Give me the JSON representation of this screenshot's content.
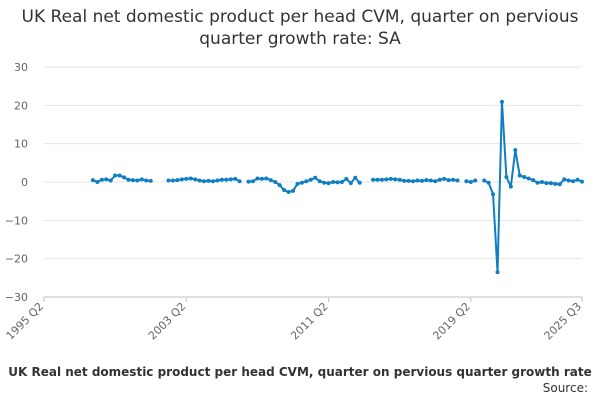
{
  "chart_data": {
    "type": "line",
    "title": "UK Real net domestic product per head CVM, quarter on pervious quarter growth rate: SA",
    "xlabel": "",
    "ylabel": "",
    "ylim": [
      -30,
      30
    ],
    "yticks": [
      "30",
      "20",
      "10",
      "0",
      "−10",
      "−20",
      "−30"
    ],
    "xticks": [
      "1995 Q2",
      "2003 Q2",
      "2011 Q2",
      "2019 Q2",
      "2025 Q3"
    ],
    "grid": "horizontal",
    "legend_position": "bottom",
    "series": [
      {
        "name": "UK Real net domestic product per head CVM, quarter on pervious quarter growth rate",
        "color": "#0f7ec2",
        "segments": [
          {
            "x": [
              "1998 Q1",
              "1998 Q2",
              "1998 Q3",
              "1998 Q4",
              "1999 Q1",
              "1999 Q2",
              "1999 Q3",
              "1999 Q4",
              "2000 Q1",
              "2000 Q2",
              "2000 Q3",
              "2000 Q4",
              "2001 Q1",
              "2001 Q2",
              "2001 Q3",
              "2001 Q4"
            ],
            "y": [
              0.5,
              0.0,
              0.6,
              0.7,
              0.4,
              1.7,
              1.7,
              1.2,
              0.6,
              0.5,
              0.4,
              0.7,
              0.4,
              0.3,
              null,
              null
            ]
          },
          {
            "x": [
              "2002 Q2",
              "2002 Q3",
              "2002 Q4",
              "2003 Q1",
              "2003 Q2",
              "2003 Q3",
              "2003 Q4",
              "2004 Q1",
              "2004 Q2",
              "2004 Q3",
              "2004 Q4",
              "2005 Q1",
              "2005 Q2",
              "2005 Q3",
              "2005 Q4",
              "2006 Q1",
              "2006 Q2",
              "2006 Q3"
            ],
            "y": [
              0.4,
              0.4,
              0.5,
              0.7,
              0.8,
              0.9,
              0.7,
              0.4,
              0.2,
              0.3,
              0.2,
              0.4,
              0.6,
              0.6,
              0.7,
              0.8,
              0.2,
              null
            ]
          },
          {
            "x": [
              "2006 Q4",
              "2007 Q1",
              "2007 Q2",
              "2007 Q3",
              "2007 Q4",
              "2008 Q1",
              "2008 Q2",
              "2008 Q3",
              "2008 Q4",
              "2009 Q1",
              "2009 Q2",
              "2009 Q3",
              "2009 Q4",
              "2010 Q1",
              "2010 Q2",
              "2010 Q3",
              "2010 Q4",
              "2011 Q1",
              "2011 Q2",
              "2011 Q3",
              "2011 Q4",
              "2012 Q1",
              "2012 Q2",
              "2012 Q3",
              "2012 Q4",
              "2013 Q1",
              "2013 Q2"
            ],
            "y": [
              0.1,
              0.2,
              0.9,
              0.8,
              0.9,
              0.5,
              0.0,
              -0.8,
              -2.1,
              -2.6,
              -2.3,
              -0.5,
              -0.2,
              0.2,
              0.6,
              1.1,
              0.2,
              -0.2,
              -0.3,
              0.0,
              -0.1,
              0.0,
              0.8,
              -0.3,
              1.1,
              -0.2,
              null
            ]
          },
          {
            "x": [
              "2013 Q4",
              "2014 Q1",
              "2014 Q2",
              "2014 Q3",
              "2014 Q4",
              "2015 Q1",
              "2015 Q2",
              "2015 Q3",
              "2015 Q4",
              "2016 Q1",
              "2016 Q2",
              "2016 Q3",
              "2016 Q4",
              "2017 Q1",
              "2017 Q2",
              "2017 Q3",
              "2017 Q4",
              "2018 Q1",
              "2018 Q2",
              "2018 Q3"
            ],
            "y": [
              0.6,
              0.6,
              0.6,
              0.7,
              0.8,
              0.7,
              0.6,
              0.3,
              0.3,
              0.2,
              0.4,
              0.3,
              0.5,
              0.4,
              0.2,
              0.6,
              0.8,
              0.5,
              0.6,
              0.4
            ]
          },
          {
            "x": [
              "2019 Q1",
              "2019 Q2",
              "2019 Q3"
            ],
            "y": [
              0.2,
              0.0,
              0.4
            ]
          },
          {
            "x": [
              "2020 Q1",
              "2020 Q2",
              "2020 Q3",
              "2020 Q4",
              "2021 Q1",
              "2021 Q2",
              "2021 Q3",
              "2021 Q4",
              "2022 Q1",
              "2022 Q2",
              "2022 Q3",
              "2022 Q4",
              "2023 Q1",
              "2023 Q2",
              "2023 Q3",
              "2023 Q4",
              "2024 Q1",
              "2024 Q2",
              "2024 Q3",
              "2024 Q4",
              "2025 Q1",
              "2025 Q2",
              "2025 Q3"
            ],
            "y": [
              0.4,
              -0.2,
              -3.2,
              -23.5,
              20.9,
              1.3,
              -1.2,
              8.3,
              1.7,
              1.3,
              0.9,
              0.5,
              -0.2,
              0.0,
              -0.3,
              -0.3,
              -0.5,
              -0.6,
              0.7,
              0.4,
              0.2,
              0.6,
              0.1
            ]
          }
        ]
      }
    ],
    "source_label": "Source:"
  }
}
